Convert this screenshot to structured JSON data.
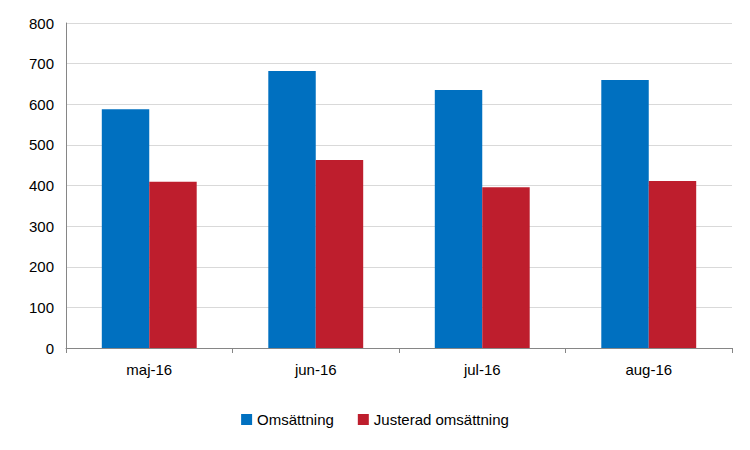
{
  "chart_data": {
    "type": "bar",
    "categories": [
      "maj-16",
      "jun-16",
      "jul-16",
      "aug-16"
    ],
    "series": [
      {
        "name": "Omsättning",
        "color": "#0070c0",
        "values": [
          588,
          682,
          635,
          660
        ]
      },
      {
        "name": "Justerad omsättning",
        "color": "#be1e2d",
        "values": [
          409,
          463,
          396,
          411
        ]
      }
    ],
    "ylim": [
      0,
      800
    ],
    "yticks": [
      0,
      100,
      200,
      300,
      400,
      500,
      600,
      700,
      800
    ],
    "grid": true,
    "legend": "bottom"
  }
}
